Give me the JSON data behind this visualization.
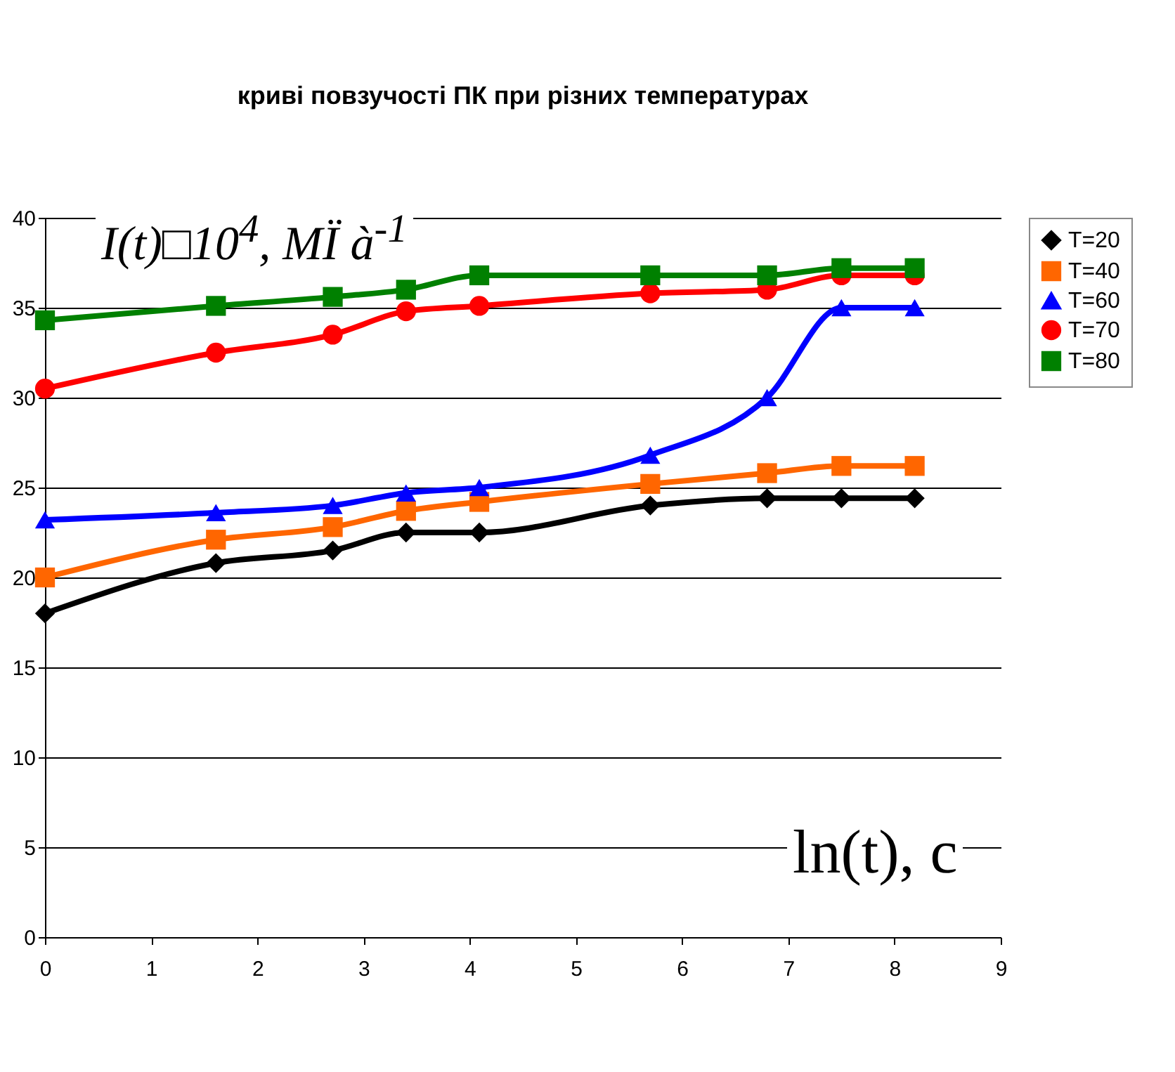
{
  "chart_data": {
    "type": "line",
    "title": "криві повзучості ПК при різних температурах",
    "xlabel": "ln(t), c",
    "ylabel": "I(t)□10$^{4}$, MÏ à$^{-1}$",
    "x": [
      0,
      1.61,
      2.71,
      3.4,
      4.09,
      5.7,
      6.8,
      7.5,
      8.19
    ],
    "xlim": [
      0,
      9
    ],
    "xticks": [
      0,
      1,
      2,
      3,
      4,
      5,
      6,
      7,
      8,
      9
    ],
    "ylim": [
      0,
      40
    ],
    "yticks": [
      0,
      5,
      10,
      15,
      20,
      25,
      30,
      35,
      40
    ],
    "grid": "y",
    "legend": "right",
    "series": [
      {
        "name": "T=20",
        "color": "#000000",
        "marker": "diamond",
        "values": [
          18,
          20.8,
          21.5,
          22.5,
          22.5,
          24,
          24.4,
          24.4,
          24.4
        ]
      },
      {
        "name": "T=40",
        "color": "#ff6600",
        "marker": "square",
        "values": [
          20,
          22.1,
          22.8,
          23.7,
          24.2,
          25.2,
          25.8,
          26.2,
          26.2
        ]
      },
      {
        "name": "T=60",
        "color": "#0000ff",
        "marker": "triangle",
        "values": [
          23.2,
          23.6,
          24,
          24.7,
          25,
          26.8,
          30,
          35,
          35
        ]
      },
      {
        "name": "T=70",
        "color": "#ff0000",
        "marker": "circle",
        "values": [
          30.5,
          32.5,
          33.5,
          34.8,
          35.1,
          35.8,
          36,
          36.8,
          36.8
        ]
      },
      {
        "name": "T=80",
        "color": "#008000",
        "marker": "square",
        "values": [
          34.3,
          35.1,
          35.6,
          36,
          36.8,
          36.8,
          36.8,
          37.2,
          37.2
        ]
      }
    ]
  }
}
